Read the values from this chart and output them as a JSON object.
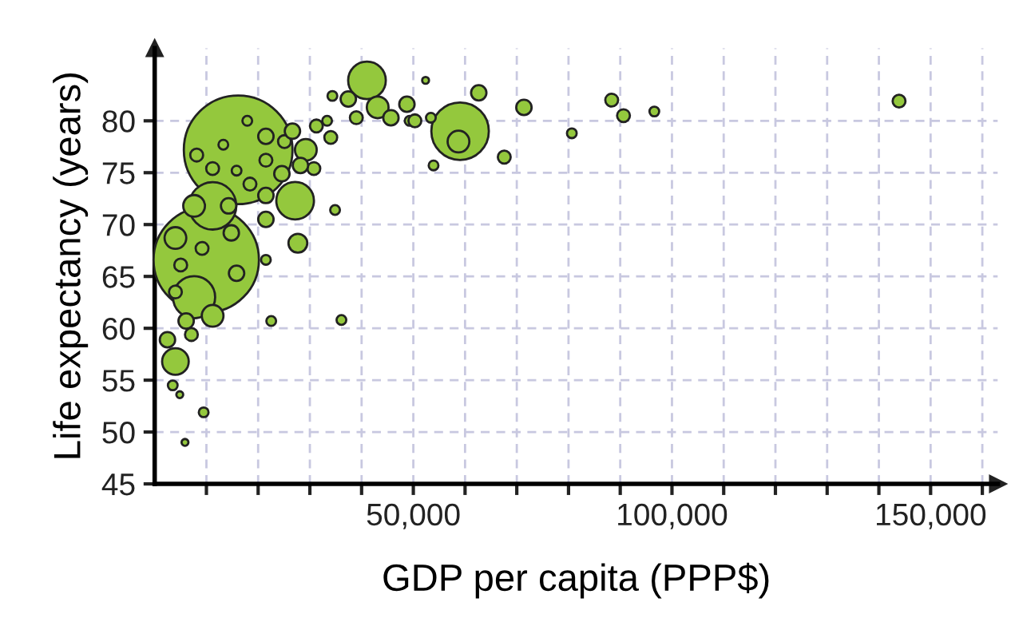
{
  "chart_data": {
    "type": "bubble",
    "xlabel": "GDP per capita (PPP$)",
    "ylabel": "Life expectancy (years)",
    "xlim": [
      0,
      163000
    ],
    "ylim": [
      45,
      87
    ],
    "xticks": [
      {
        "value": 10000,
        "label": null
      },
      {
        "value": 20000,
        "label": null
      },
      {
        "value": 30000,
        "label": null
      },
      {
        "value": 40000,
        "label": null
      },
      {
        "value": 50000,
        "label": "50,000"
      },
      {
        "value": 60000,
        "label": null
      },
      {
        "value": 70000,
        "label": null
      },
      {
        "value": 80000,
        "label": null
      },
      {
        "value": 90000,
        "label": null
      },
      {
        "value": 100000,
        "label": "100,000"
      },
      {
        "value": 110000,
        "label": null
      },
      {
        "value": 120000,
        "label": null
      },
      {
        "value": 130000,
        "label": null
      },
      {
        "value": 140000,
        "label": null
      },
      {
        "value": 150000,
        "label": "150,000"
      },
      {
        "value": 160000,
        "label": null
      }
    ],
    "yticks": [
      45,
      50,
      55,
      60,
      65,
      70,
      75,
      80
    ],
    "grid": true,
    "series": [
      {
        "color": "#94c83d",
        "x": [
          16140,
          9970,
          11200,
          27150,
          27680,
          7620,
          4010,
          3490,
          4850,
          9470,
          5860,
          22530,
          36100,
          34870,
          21500,
          21500,
          15830,
          8120,
          13270,
          17900,
          21500,
          25090,
          26630,
          29220,
          31260,
          33330,
          34040,
          30770,
          28180,
          24590,
          21500,
          18420,
          14290,
          7620,
          4010,
          5030,
          4010,
          6080,
          11200,
          2470,
          7100,
          9160,
          14810,
          11200,
          15830,
          21500,
          41040,
          34350,
          37430,
          38980,
          43110,
          45670,
          48760,
          49280,
          52370,
          53910,
          62650,
          71380,
          59040,
          58730,
          67580,
          80640,
          88350,
          90630,
          96590,
          143900,
          53390,
          50300
        ],
        "values": [
          77.2,
          66.6,
          71.8,
          72.3,
          68.2,
          63.0,
          56.8,
          54.5,
          53.6,
          51.9,
          49.0,
          60.7,
          60.8,
          71.4,
          70.5,
          66.6,
          65.3,
          76.7,
          77.7,
          80.0,
          78.5,
          78.0,
          79.0,
          77.2,
          79.5,
          80.0,
          78.4,
          75.4,
          75.7,
          74.9,
          72.8,
          73.9,
          71.8,
          71.8,
          68.7,
          66.1,
          63.5,
          60.7,
          61.2,
          58.9,
          59.4,
          67.7,
          69.2,
          75.4,
          75.2,
          76.2,
          83.9,
          82.4,
          82.1,
          80.3,
          81.3,
          80.3,
          81.6,
          80.0,
          83.9,
          75.7,
          82.7,
          81.3,
          79.0,
          78.0,
          76.5,
          78.8,
          82.0,
          80.5,
          80.9,
          81.9,
          80.3,
          80.0
        ],
        "sizes": [
          1,
          0.94,
          0.19,
          0.12,
          0.03,
          0.15,
          0.06,
          0.008,
          0.004,
          0.008,
          0.004,
          0.008,
          0.008,
          0.008,
          0.02,
          0.008,
          0.02,
          0.014,
          0.008,
          0.008,
          0.02,
          0.014,
          0.02,
          0.04,
          0.014,
          0.008,
          0.014,
          0.014,
          0.02,
          0.02,
          0.02,
          0.014,
          0.02,
          0.04,
          0.04,
          0.014,
          0.014,
          0.02,
          0.04,
          0.02,
          0.014,
          0.014,
          0.02,
          0.014,
          0.008,
          0.014,
          0.12,
          0.008,
          0.02,
          0.014,
          0.04,
          0.02,
          0.02,
          0.008,
          0.004,
          0.008,
          0.02,
          0.02,
          0.28,
          0.04,
          0.014,
          0.008,
          0.014,
          0.014,
          0.008,
          0.014,
          0.008,
          0.014
        ]
      }
    ]
  }
}
